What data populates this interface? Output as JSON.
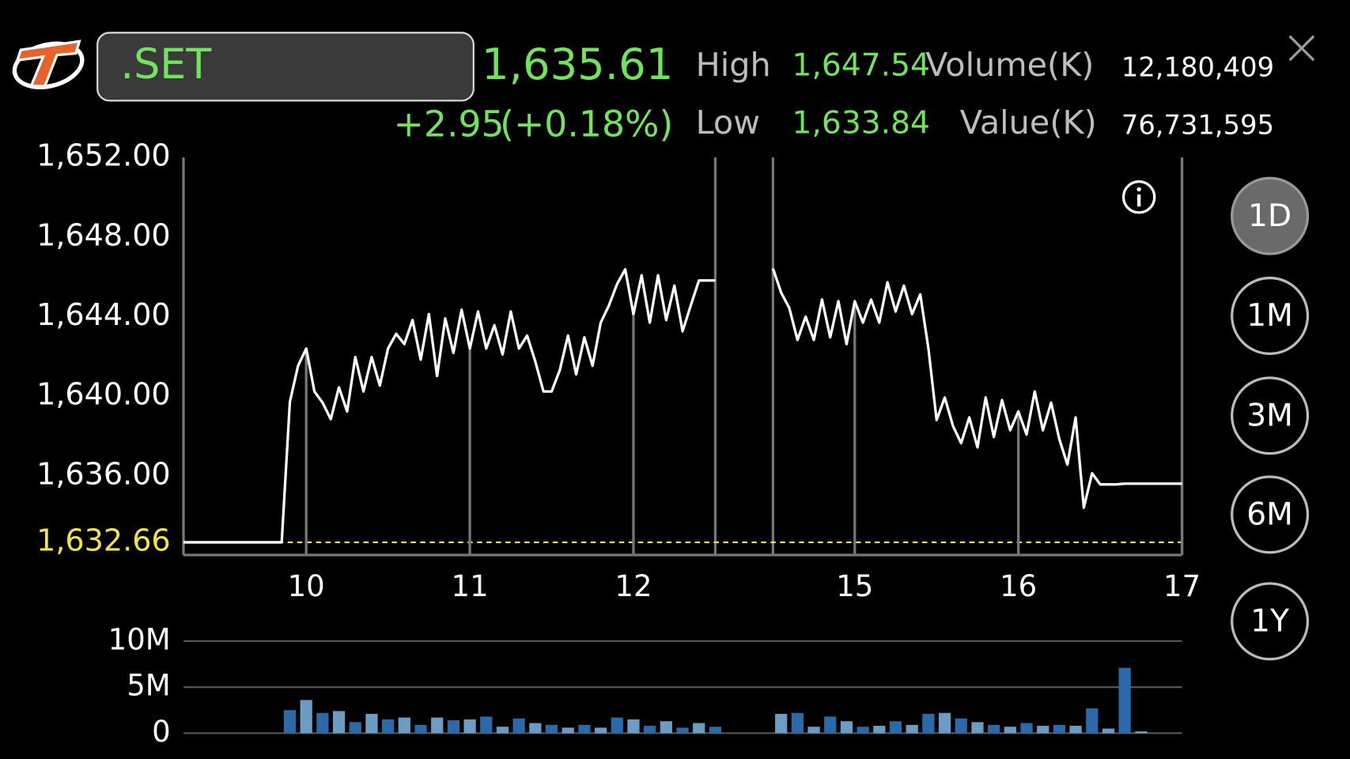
{
  "header": {
    "symbol": ".SET",
    "last": "1,635.61",
    "change": "+2.95",
    "change_pct": "(+0.18%)",
    "high_label": "High",
    "high": "1,647.54",
    "low_label": "Low",
    "low": "1,633.84",
    "volume_label": "Volume(K)",
    "volume": "12,180,409",
    "value_label": "Value(K)",
    "value": "76,731,595"
  },
  "range_buttons": {
    "items": [
      "1D",
      "1M",
      "3M",
      "6M",
      "1Y"
    ],
    "selected": 0
  },
  "chart_data": [
    {
      "type": "line",
      "color": "#ffffff",
      "reference_color": "#f2e24b",
      "highlight_tick": 0,
      "xlim": [
        9.25,
        17
      ],
      "xticks": [
        10,
        11,
        12,
        15,
        16,
        17
      ],
      "ylim": [
        1632.02,
        1652
      ],
      "yticks": [
        {
          "value": 1632.66,
          "label": "1,632.66"
        },
        {
          "value": 1636,
          "label": "1,636.00"
        },
        {
          "value": 1640,
          "label": "1,640.00"
        },
        {
          "value": 1644,
          "label": "1,644.00"
        },
        {
          "value": 1648,
          "label": "1,648.00"
        },
        {
          "value": 1652,
          "label": "1,652.00"
        }
      ],
      "x": [
        9.25,
        9.85,
        9.9,
        9.95,
        10,
        10.05,
        10.1,
        10.15,
        10.2,
        10.25,
        10.3,
        10.35,
        10.4,
        10.45,
        10.5,
        10.55,
        10.6,
        10.65,
        10.7,
        10.75,
        10.8,
        10.85,
        10.9,
        10.95,
        11,
        11.05,
        11.1,
        11.15,
        11.2,
        11.25,
        11.3,
        11.35,
        11.4,
        11.45,
        11.5,
        11.55,
        11.6,
        11.65,
        11.7,
        11.75,
        11.8,
        11.85,
        11.9,
        11.95,
        12,
        12.05,
        12.1,
        12.15,
        12.2,
        12.25,
        12.3,
        12.35,
        12.4,
        12.45,
        12.5,
        null,
        14.5,
        14.55,
        14.6,
        14.65,
        14.7,
        14.75,
        14.8,
        14.85,
        14.9,
        14.95,
        15,
        15.05,
        15.1,
        15.15,
        15.2,
        15.25,
        15.3,
        15.35,
        15.4,
        15.45,
        15.5,
        15.55,
        15.6,
        15.65,
        15.7,
        15.75,
        15.8,
        15.85,
        15.9,
        15.95,
        16,
        16.05,
        16.1,
        16.15,
        16.2,
        16.25,
        16.3,
        16.35,
        16.4,
        16.45,
        16.5,
        16.6,
        16.65,
        17
      ],
      "values": [
        1632.66,
        1632.66,
        1639.72,
        1641.53,
        1642.4,
        1640.24,
        1639.68,
        1638.85,
        1640.45,
        1639.24,
        1641.97,
        1640.24,
        1641.97,
        1640.54,
        1642.4,
        1643.14,
        1642.62,
        1643.83,
        1641.84,
        1644.13,
        1641.02,
        1643.91,
        1642.18,
        1644.35,
        1642.4,
        1644.26,
        1642.4,
        1643.57,
        1642.1,
        1644.26,
        1642.4,
        1643.05,
        1641.75,
        1640.24,
        1640.24,
        1641.32,
        1643.05,
        1641.1,
        1642.96,
        1641.53,
        1643.7,
        1644.56,
        1645.64,
        1646.38,
        1644.13,
        1646.08,
        1643.7,
        1646.08,
        1643.83,
        1645.56,
        1643.27,
        1644.56,
        1645.82,
        1645.82,
        1645.82,
        null,
        1646.42,
        1645.21,
        1644.43,
        1642.83,
        1644.0,
        1642.83,
        1644.86,
        1642.96,
        1644.78,
        1642.62,
        1644.78,
        1643.7,
        1644.86,
        1643.7,
        1645.73,
        1644.26,
        1645.56,
        1644.13,
        1645.12,
        1642.4,
        1638.81,
        1639.94,
        1638.51,
        1637.64,
        1638.94,
        1637.43,
        1639.94,
        1637.95,
        1639.81,
        1638.29,
        1639.24,
        1638.08,
        1640.24,
        1638.29,
        1639.68,
        1637.86,
        1636.56,
        1638.94,
        1634.4,
        1636.13,
        1635.57,
        1635.57,
        1635.61,
        1635.61
      ]
    },
    {
      "type": "bar",
      "colors": [
        "#2a6aa8",
        "#6a9cc4"
      ],
      "grid": true,
      "xlim": [
        9.25,
        17
      ],
      "ylim": [
        0,
        10000000
      ],
      "yticks": [
        0,
        {
          "value": 5000000,
          "label": "5M"
        },
        {
          "value": 10000000,
          "label": "10M"
        }
      ],
      "x": [
        9.9,
        10,
        10.1,
        10.2,
        10.3,
        10.4,
        10.5,
        10.6,
        10.7,
        10.8,
        10.9,
        11,
        11.1,
        11.2,
        11.3,
        11.4,
        11.5,
        11.6,
        11.7,
        11.8,
        11.9,
        12,
        12.1,
        12.2,
        12.3,
        12.4,
        12.5,
        14.55,
        14.65,
        14.75,
        14.85,
        14.95,
        15.05,
        15.15,
        15.25,
        15.35,
        15.45,
        15.55,
        15.65,
        15.75,
        15.85,
        15.95,
        16.05,
        16.15,
        16.25,
        16.35,
        16.45,
        16.55,
        16.65,
        16.75
      ],
      "values": [
        2500000,
        3600000,
        2200000,
        2400000,
        1200000,
        2100000,
        1500000,
        1700000,
        900000,
        1700000,
        1400000,
        1500000,
        1800000,
        700000,
        1600000,
        1100000,
        900000,
        600000,
        900000,
        600000,
        1700000,
        1500000,
        800000,
        1300000,
        600000,
        1100000,
        700000,
        2100000,
        2200000,
        700000,
        1800000,
        1300000,
        700000,
        800000,
        1300000,
        900000,
        2100000,
        2200000,
        1600000,
        1200000,
        900000,
        700000,
        1100000,
        800000,
        900000,
        800000,
        2700000,
        500000,
        7100000,
        200000
      ]
    }
  ]
}
